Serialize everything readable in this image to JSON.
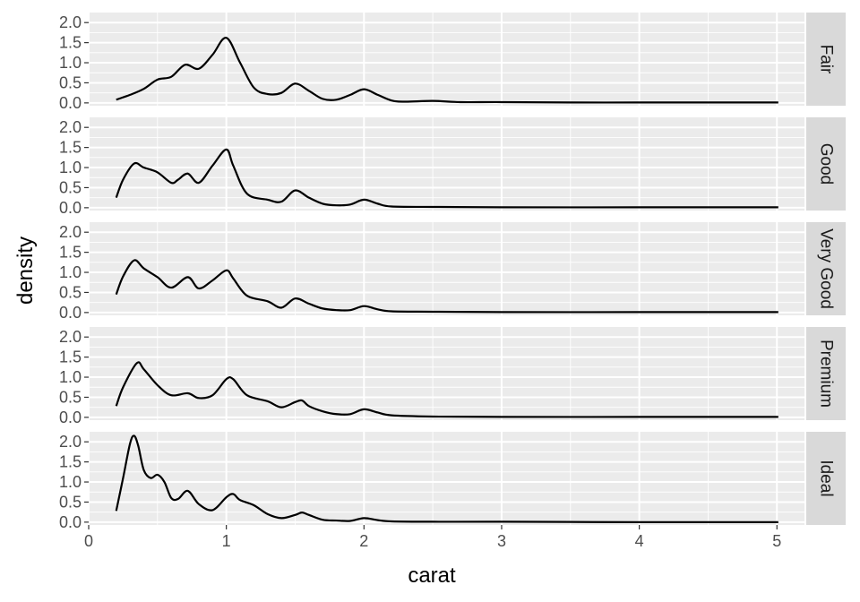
{
  "chart_data": {
    "type": "line",
    "xlabel": "carat",
    "ylabel": "density",
    "xlim": [
      0,
      5.2
    ],
    "ylim": [
      -0.07,
      2.25
    ],
    "x_ticks": [
      0,
      1,
      2,
      3,
      4,
      5
    ],
    "x_tick_labels": [
      "0",
      "1",
      "2",
      "3",
      "4",
      "5"
    ],
    "y_ticks": [
      0.0,
      0.5,
      1.0,
      1.5,
      2.0
    ],
    "y_tick_labels": [
      "0.0",
      "0.5",
      "1.0",
      "1.5",
      "2.0"
    ],
    "grid": true,
    "facet_strip": "right",
    "panel_background": "#ebebeb",
    "strip_background": "#d9d9d9",
    "line_color": "#000000",
    "panels": [
      {
        "label": "Fair",
        "x": [
          0.2,
          0.3,
          0.4,
          0.5,
          0.6,
          0.7,
          0.8,
          0.9,
          1.0,
          1.1,
          1.2,
          1.3,
          1.4,
          1.5,
          1.6,
          1.7,
          1.8,
          1.9,
          2.0,
          2.1,
          2.2,
          2.3,
          2.5,
          2.7,
          3.0,
          3.5,
          4.0,
          4.5,
          5.01
        ],
        "y": [
          0.08,
          0.2,
          0.35,
          0.58,
          0.65,
          0.95,
          0.85,
          1.2,
          1.62,
          1.0,
          0.38,
          0.22,
          0.25,
          0.48,
          0.3,
          0.1,
          0.08,
          0.2,
          0.34,
          0.2,
          0.06,
          0.03,
          0.05,
          0.02,
          0.02,
          0.01,
          0.01,
          0.01,
          0.01
        ]
      },
      {
        "label": "Good",
        "x": [
          0.2,
          0.25,
          0.33,
          0.4,
          0.5,
          0.6,
          0.65,
          0.72,
          0.8,
          0.9,
          1.0,
          1.05,
          1.15,
          1.3,
          1.4,
          1.5,
          1.6,
          1.7,
          1.8,
          1.9,
          2.0,
          2.1,
          2.2,
          2.5,
          3.0,
          4.0,
          5.01
        ],
        "y": [
          0.25,
          0.7,
          1.1,
          1.0,
          0.88,
          0.62,
          0.7,
          0.85,
          0.62,
          1.05,
          1.45,
          1.05,
          0.35,
          0.2,
          0.15,
          0.43,
          0.25,
          0.1,
          0.06,
          0.08,
          0.2,
          0.1,
          0.03,
          0.02,
          0.01,
          0.01,
          0.01
        ]
      },
      {
        "label": "Very Good",
        "x": [
          0.2,
          0.25,
          0.33,
          0.4,
          0.5,
          0.6,
          0.72,
          0.8,
          0.9,
          1.0,
          1.05,
          1.15,
          1.3,
          1.4,
          1.5,
          1.6,
          1.7,
          1.8,
          1.9,
          2.0,
          2.1,
          2.2,
          2.5,
          3.0,
          4.0,
          5.01
        ],
        "y": [
          0.45,
          0.9,
          1.3,
          1.1,
          0.88,
          0.62,
          0.88,
          0.6,
          0.8,
          1.05,
          0.85,
          0.42,
          0.28,
          0.12,
          0.35,
          0.22,
          0.1,
          0.06,
          0.06,
          0.16,
          0.08,
          0.03,
          0.02,
          0.01,
          0.01,
          0.01
        ]
      },
      {
        "label": "Premium",
        "x": [
          0.2,
          0.25,
          0.35,
          0.4,
          0.5,
          0.6,
          0.72,
          0.8,
          0.9,
          1.0,
          1.05,
          1.15,
          1.3,
          1.4,
          1.5,
          1.55,
          1.6,
          1.7,
          1.8,
          1.9,
          2.0,
          2.1,
          2.2,
          2.5,
          3.0,
          4.0,
          5.01
        ],
        "y": [
          0.28,
          0.75,
          1.35,
          1.2,
          0.8,
          0.55,
          0.6,
          0.48,
          0.55,
          0.95,
          0.95,
          0.55,
          0.4,
          0.25,
          0.38,
          0.42,
          0.28,
          0.15,
          0.08,
          0.08,
          0.2,
          0.12,
          0.05,
          0.02,
          0.01,
          0.01,
          0.01
        ]
      },
      {
        "label": "Ideal",
        "x": [
          0.2,
          0.25,
          0.3,
          0.33,
          0.36,
          0.4,
          0.45,
          0.5,
          0.55,
          0.6,
          0.65,
          0.72,
          0.8,
          0.9,
          1.0,
          1.05,
          1.1,
          1.2,
          1.3,
          1.4,
          1.5,
          1.55,
          1.6,
          1.7,
          1.8,
          1.9,
          2.0,
          2.1,
          2.2,
          2.5,
          3.0,
          4.0,
          5.01
        ],
        "y": [
          0.28,
          1.1,
          1.95,
          2.15,
          1.9,
          1.3,
          1.1,
          1.18,
          1.0,
          0.6,
          0.58,
          0.78,
          0.45,
          0.3,
          0.62,
          0.7,
          0.55,
          0.42,
          0.2,
          0.1,
          0.18,
          0.24,
          0.18,
          0.06,
          0.04,
          0.03,
          0.1,
          0.05,
          0.02,
          0.01,
          0.01,
          0.0,
          0.0
        ]
      }
    ]
  }
}
